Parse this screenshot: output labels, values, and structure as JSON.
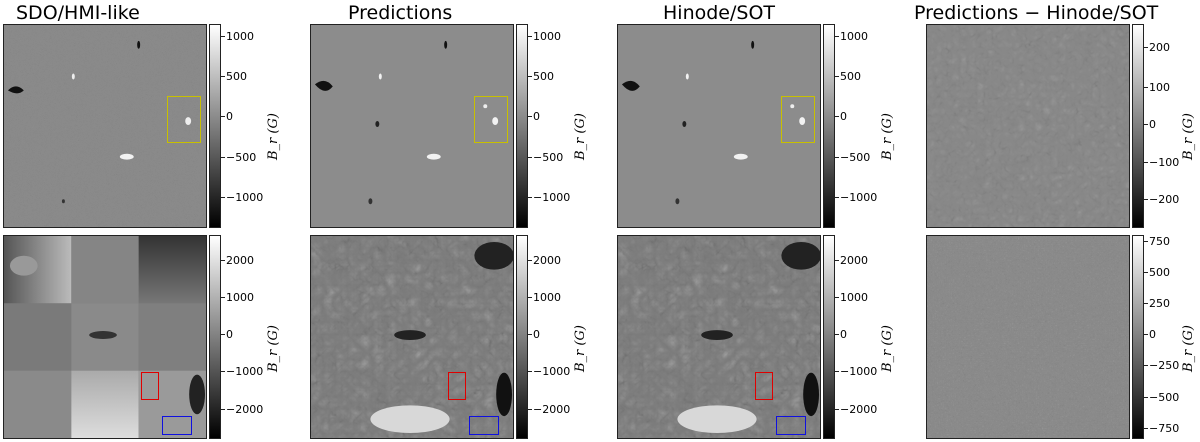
{
  "titles": {
    "col1": "SDO/HMI-like",
    "col2": "Predictions",
    "col3": "Hinode/SOT",
    "col4": "Predictions − Hinode/SOT"
  },
  "colorbar_label": "B_r (G)",
  "colorbars": {
    "row1_main_ticks": [
      "1000",
      "500",
      "0",
      "−500",
      "−1000"
    ],
    "row1_diff_ticks": [
      "200",
      "100",
      "0",
      "−100",
      "−200"
    ],
    "row2_main_ticks": [
      "2000",
      "1000",
      "0",
      "−1000",
      "−2000"
    ],
    "row2_diff_ticks": [
      "750",
      "500",
      "250",
      "0",
      "−250",
      "−500",
      "−750"
    ]
  },
  "colors": {
    "yellow_box": "#c8c000",
    "red_box": "#e00000",
    "blue_box": "#1010e0"
  }
}
